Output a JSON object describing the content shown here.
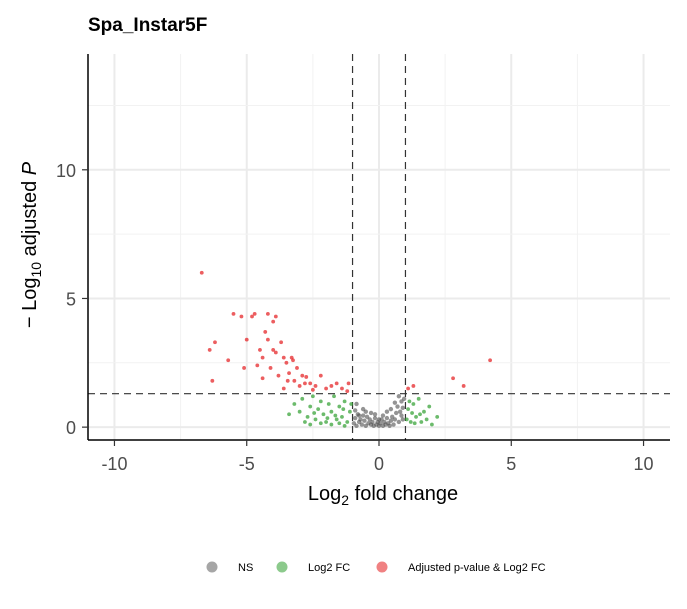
{
  "chart_data": {
    "type": "scatter",
    "title": "Spa_Instar5F",
    "xlabel": {
      "base": "Log",
      "sub": "2",
      "rest": " fold change"
    },
    "ylabel": {
      "prefix": "− Log",
      "sub": "10",
      "rest": " adjusted ",
      "italic": "P"
    },
    "xlim": [
      -11,
      11
    ],
    "ylim": [
      -0.5,
      14.5
    ],
    "x_ticks": [
      -10,
      -5,
      0,
      5,
      10
    ],
    "x_tick_labels": [
      "-10",
      "-5",
      "0",
      "5",
      "10"
    ],
    "y_ticks": [
      0,
      5,
      10
    ],
    "y_tick_labels": [
      "0",
      "5",
      "10"
    ],
    "grid": true,
    "fc_cutoff": [
      -1,
      1
    ],
    "p_cutoff": 1.3,
    "legend_position": "bottom",
    "series": [
      {
        "name": "NS",
        "color": "#4d4d4d",
        "points": [
          [
            -0.95,
            0.15
          ],
          [
            -0.9,
            0.35
          ],
          [
            -0.85,
            0.05
          ],
          [
            -0.8,
            0.5
          ],
          [
            -0.75,
            0.2
          ],
          [
            -0.7,
            0.3
          ],
          [
            -0.65,
            0.1
          ],
          [
            -0.6,
            0.45
          ],
          [
            -0.55,
            0.25
          ],
          [
            -0.5,
            0.05
          ],
          [
            -0.45,
            0.4
          ],
          [
            -0.4,
            0.15
          ],
          [
            -0.35,
            0.3
          ],
          [
            -0.3,
            0.1
          ],
          [
            -0.25,
            0.2
          ],
          [
            -0.2,
            0.05
          ],
          [
            -0.15,
            0.35
          ],
          [
            -0.1,
            0.1
          ],
          [
            -0.05,
            0.2
          ],
          [
            0.0,
            0.05
          ],
          [
            0.05,
            0.15
          ],
          [
            0.1,
            0.3
          ],
          [
            0.15,
            0.05
          ],
          [
            0.2,
            0.2
          ],
          [
            0.25,
            0.1
          ],
          [
            0.3,
            0.35
          ],
          [
            0.35,
            0.15
          ],
          [
            0.4,
            0.05
          ],
          [
            0.45,
            0.25
          ],
          [
            0.5,
            0.4
          ],
          [
            0.55,
            0.1
          ],
          [
            0.6,
            0.3
          ],
          [
            0.65,
            0.55
          ],
          [
            0.7,
            0.8
          ],
          [
            0.75,
            0.2
          ],
          [
            0.8,
            0.6
          ],
          [
            0.85,
            1.0
          ],
          [
            0.9,
            0.3
          ],
          [
            0.95,
            1.1
          ],
          [
            0.9,
            0.75
          ],
          [
            -0.9,
            0.65
          ],
          [
            -0.85,
            0.9
          ],
          [
            -0.6,
            0.7
          ],
          [
            0.6,
            0.95
          ],
          [
            0.75,
            1.2
          ],
          [
            -0.3,
            0.55
          ],
          [
            0.3,
            0.6
          ],
          [
            0.0,
            0.3
          ],
          [
            -0.5,
            0.6
          ],
          [
            0.45,
            0.7
          ],
          [
            0.15,
            0.45
          ],
          [
            -0.15,
            0.5
          ],
          [
            0.85,
            0.45
          ],
          [
            -0.75,
            0.45
          ]
        ]
      },
      {
        "name": "Log2 FC",
        "color": "#2e9e2e",
        "points": [
          [
            -3.2,
            0.9
          ],
          [
            -3.0,
            0.6
          ],
          [
            -2.9,
            1.1
          ],
          [
            -2.7,
            0.4
          ],
          [
            -2.6,
            0.8
          ],
          [
            -2.5,
            1.2
          ],
          [
            -2.4,
            0.3
          ],
          [
            -2.3,
            0.7
          ],
          [
            -2.2,
            1.0
          ],
          [
            -2.1,
            0.5
          ],
          [
            -2.0,
            0.2
          ],
          [
            -1.9,
            0.9
          ],
          [
            -1.8,
            0.6
          ],
          [
            -1.7,
            1.2
          ],
          [
            -1.6,
            0.3
          ],
          [
            -1.5,
            0.8
          ],
          [
            -1.4,
            0.4
          ],
          [
            -1.3,
            1.0
          ],
          [
            -1.2,
            0.2
          ],
          [
            -1.1,
            0.6
          ],
          [
            -1.05,
            0.9
          ],
          [
            -2.8,
            0.2
          ],
          [
            -2.6,
            0.1
          ],
          [
            -2.2,
            0.15
          ],
          [
            -1.8,
            0.1
          ],
          [
            -1.5,
            0.15
          ],
          [
            -1.3,
            0.05
          ],
          [
            -3.4,
            0.5
          ],
          [
            -2.45,
            0.55
          ],
          [
            -1.95,
            0.35
          ],
          [
            -1.65,
            0.45
          ],
          [
            -1.35,
            0.7
          ],
          [
            1.05,
            0.3
          ],
          [
            1.1,
            0.7
          ],
          [
            1.2,
            0.2
          ],
          [
            1.3,
            0.9
          ],
          [
            1.4,
            0.4
          ],
          [
            1.5,
            1.1
          ],
          [
            1.6,
            0.2
          ],
          [
            1.7,
            0.6
          ],
          [
            1.8,
            0.3
          ],
          [
            1.9,
            0.8
          ],
          [
            2.0,
            0.1
          ],
          [
            2.2,
            0.4
          ],
          [
            1.15,
            1.0
          ],
          [
            1.35,
            0.15
          ],
          [
            1.55,
            0.5
          ],
          [
            1.25,
            0.55
          ]
        ]
      },
      {
        "name": "Adjusted p-value & Log2 FC",
        "color": "#e41a1c",
        "points": [
          [
            -6.7,
            6.0
          ],
          [
            -6.4,
            3.0
          ],
          [
            -6.2,
            3.3
          ],
          [
            -5.7,
            2.6
          ],
          [
            -5.5,
            4.4
          ],
          [
            -5.2,
            4.3
          ],
          [
            -5.0,
            3.4
          ],
          [
            -4.8,
            4.3
          ],
          [
            -4.7,
            4.4
          ],
          [
            -4.5,
            3.0
          ],
          [
            -4.4,
            2.7
          ],
          [
            -4.3,
            3.7
          ],
          [
            -4.2,
            3.4
          ],
          [
            -4.2,
            4.4
          ],
          [
            -4.1,
            2.3
          ],
          [
            -4.0,
            4.1
          ],
          [
            -3.9,
            4.3
          ],
          [
            -3.8,
            2.0
          ],
          [
            -3.7,
            3.3
          ],
          [
            -3.6,
            2.7
          ],
          [
            -3.5,
            2.5
          ],
          [
            -3.4,
            2.1
          ],
          [
            -3.3,
            2.7
          ],
          [
            -3.2,
            1.8
          ],
          [
            -3.1,
            2.3
          ],
          [
            -3.0,
            1.6
          ],
          [
            -2.9,
            2.0
          ],
          [
            -2.8,
            1.7
          ],
          [
            -2.6,
            1.7
          ],
          [
            -2.4,
            1.6
          ],
          [
            -2.2,
            2.0
          ],
          [
            -2.0,
            1.5
          ],
          [
            -1.8,
            1.6
          ],
          [
            -1.6,
            1.7
          ],
          [
            -1.4,
            1.5
          ],
          [
            -1.2,
            1.4
          ],
          [
            -6.3,
            1.8
          ],
          [
            -5.1,
            2.3
          ],
          [
            -4.6,
            2.4
          ],
          [
            -4.0,
            3.0
          ],
          [
            -3.6,
            1.5
          ],
          [
            -3.9,
            2.9
          ],
          [
            -4.4,
            1.9
          ],
          [
            -3.45,
            1.8
          ],
          [
            -2.75,
            1.95
          ],
          [
            -2.5,
            1.45
          ],
          [
            -1.15,
            1.7
          ],
          [
            -3.25,
            2.6
          ],
          [
            1.1,
            1.5
          ],
          [
            1.3,
            1.6
          ],
          [
            2.8,
            1.9
          ],
          [
            3.2,
            1.6
          ],
          [
            4.2,
            2.6
          ]
        ]
      }
    ]
  }
}
